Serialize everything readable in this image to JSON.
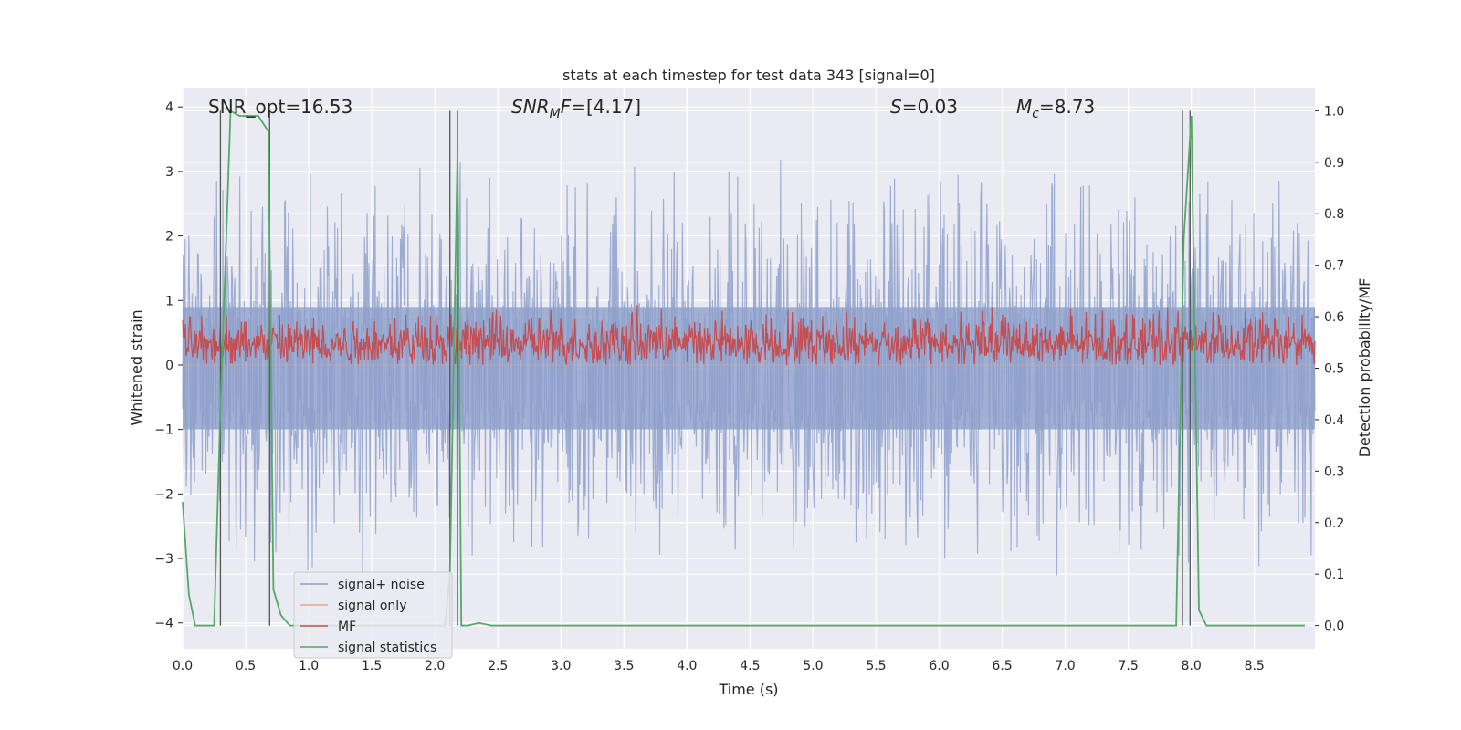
{
  "chart_data": {
    "type": "line",
    "title": "stats at each timestep for test data 343 [signal=0]",
    "xlabel": "Time (s)",
    "ylabel": "Whitened strain",
    "y2label": "Detection probability/MF",
    "xlim": [
      0,
      8.98
    ],
    "ylim": [
      -4.4,
      4.3
    ],
    "y2lim": [
      -0.045,
      1.045
    ],
    "xticks": [
      "0.0",
      "0.5",
      "1.0",
      "1.5",
      "2.0",
      "2.5",
      "3.0",
      "3.5",
      "4.0",
      "4.5",
      "5.0",
      "5.5",
      "6.0",
      "6.5",
      "7.0",
      "7.5",
      "8.0",
      "8.5"
    ],
    "yticks": [
      "−4",
      "−3",
      "−2",
      "−1",
      "0",
      "1",
      "2",
      "3",
      "4"
    ],
    "y2ticks": [
      "0.0",
      "0.1",
      "0.2",
      "0.3",
      "0.4",
      "0.5",
      "0.6",
      "0.7",
      "0.8",
      "0.9",
      "1.0"
    ],
    "grid": true,
    "legend_position": "lower-left",
    "annotations": {
      "snr_opt": "SNR_opt=16.53",
      "snr_mf": "[4.17]",
      "s_val": "0.03",
      "mc_val": "8.73"
    },
    "vlines_x": [
      0.3,
      0.69,
      2.12,
      2.18,
      7.93,
      7.99
    ],
    "series": [
      {
        "name": "signal+ noise",
        "color": "#8da0cb",
        "axis": "left",
        "profile": "noise",
        "envelope_max": 3.5,
        "envelope_min": -4.0
      },
      {
        "name": "signal only",
        "color": "#e9a184",
        "axis": "left",
        "profile": "flat",
        "values_y": 0
      },
      {
        "name": "MF",
        "color": "#c44e52",
        "axis": "right",
        "profile": "noise",
        "envelope_max": 0.63,
        "envelope_min": 0.5
      },
      {
        "name": "signal statistics",
        "color": "#55a868",
        "axis": "right",
        "x": [
          0.0,
          0.05,
          0.1,
          0.25,
          0.3,
          0.38,
          0.45,
          0.6,
          0.68,
          0.72,
          0.78,
          0.85,
          2.08,
          2.12,
          2.18,
          2.21,
          2.26,
          2.35,
          2.45,
          2.6,
          7.6,
          7.88,
          7.94,
          8.0,
          8.06,
          8.12,
          8.9
        ],
        "values": [
          0.24,
          0.06,
          0.0,
          0.0,
          0.42,
          1.0,
          0.99,
          0.99,
          0.96,
          0.07,
          0.02,
          0.0,
          0.0,
          0.1,
          0.92,
          0.0,
          0.0,
          0.005,
          0.0,
          0.0,
          0.0,
          0.0,
          0.75,
          0.99,
          0.03,
          0.0,
          0.0
        ]
      }
    ]
  }
}
